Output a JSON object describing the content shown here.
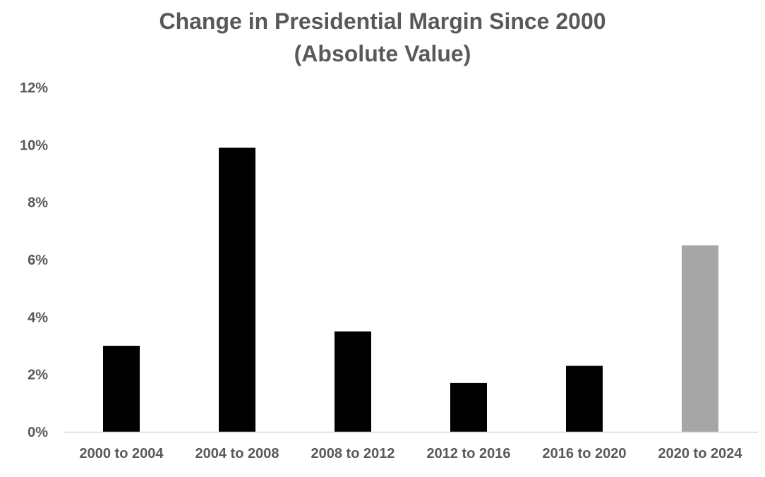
{
  "chart_data": {
    "type": "bar",
    "title_line_1": "Change in Presidential Margin Since 2000",
    "title_line_2": "(Absolute Value)",
    "xlabel": "",
    "ylabel": "",
    "categories": [
      "2000 to 2004",
      "2004 to 2008",
      "2008 to 2012",
      "2012 to 2016",
      "2016 to 2020",
      "2020 to 2024"
    ],
    "values": [
      3.0,
      9.9,
      3.5,
      1.7,
      2.3,
      6.5
    ],
    "bar_colors": [
      "#000000",
      "#000000",
      "#000000",
      "#000000",
      "#000000",
      "#a6a6a6"
    ],
    "ylim": [
      0,
      12
    ],
    "y_ticks": [
      0,
      2,
      4,
      6,
      8,
      10,
      12
    ],
    "y_tick_labels": [
      "0%",
      "2%",
      "4%",
      "6%",
      "8%",
      "10%",
      "12%"
    ],
    "grid": false,
    "legend": "none"
  },
  "colors": {
    "title": "#595959",
    "axis_text": "#595959",
    "axis_line": "#d9d9d9",
    "bar_default": "#000000",
    "bar_highlight": "#a6a6a6"
  }
}
